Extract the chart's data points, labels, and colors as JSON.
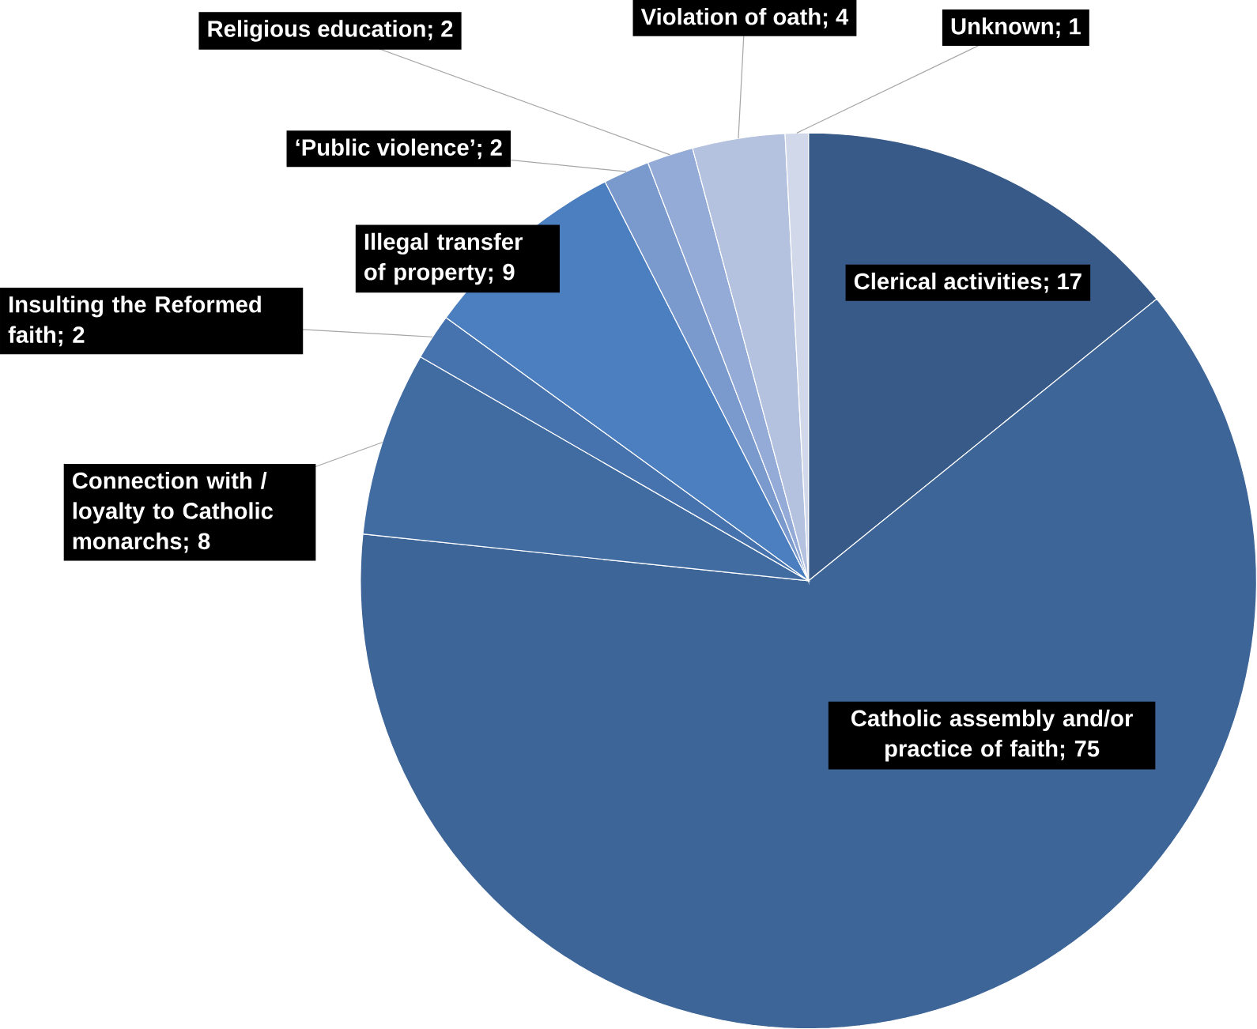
{
  "chart_data": {
    "type": "pie",
    "categories": [
      "Clerical activities",
      "Catholic assembly and/or practice of faith",
      "Connection with / loyalty to Catholic monarchs",
      "Insulting the Reformed faith",
      "Illegal transfer of property",
      "‘Public violence’",
      "Religious education",
      "Violation of oath",
      "Unknown"
    ],
    "values": [
      17,
      75,
      8,
      2,
      9,
      2,
      2,
      4,
      1
    ],
    "colors": [
      "#385a88",
      "#3d6597",
      "#416ca2",
      "#4672ad",
      "#4c7fc0",
      "#7a99cd",
      "#93abd6",
      "#b4c2df",
      "#d0d8ea"
    ],
    "value_labels": [
      "; 17",
      "; 75",
      "; 8",
      "; 2",
      "; 9",
      "; 2",
      "; 2",
      "; 4",
      "; 1"
    ]
  }
}
